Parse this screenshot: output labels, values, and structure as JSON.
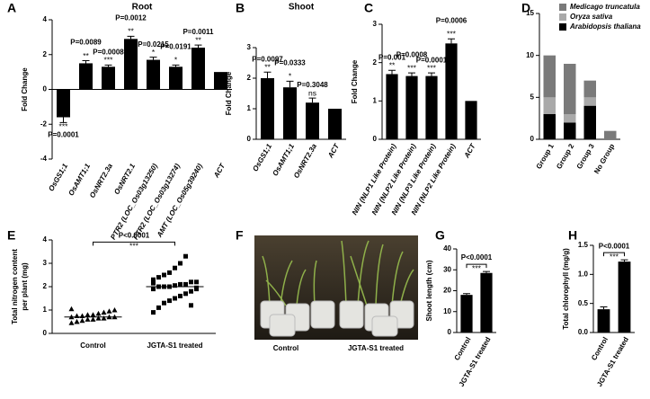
{
  "chart_data": [
    {
      "panel": "A",
      "type": "bar",
      "title": "Root",
      "ylabel": [
        "Fold Change"
      ],
      "categories": [
        "OsGS1;1",
        "OsAMT1;1",
        "OsNRT2.3a",
        "OsNRT2.1",
        "PTR2 (LOC_Os03g13250)",
        "PTR2 (LOC_Os03g13274)",
        "AMT (LOC_Os05g39240)",
        "ACT"
      ],
      "values": [
        -1.6,
        1.5,
        1.3,
        2.9,
        1.7,
        1.3,
        2.4,
        1.0
      ],
      "errors": [
        0.3,
        0.15,
        0.1,
        0.15,
        0.15,
        0.1,
        0.15,
        0
      ],
      "p_labels": [
        "P=0.0001",
        "P=0.0089",
        "P=0.0008",
        "P=0.0012",
        "P=0.0215",
        "P=0.0191",
        "P=0.0011",
        null
      ],
      "sig_labels": [
        "***",
        "**",
        "***",
        "**",
        "*",
        "*",
        "**",
        null
      ],
      "color": "#000000",
      "ylim": [
        -4,
        4
      ],
      "yticks": [
        -4,
        -2,
        0,
        2,
        4
      ]
    },
    {
      "panel": "B",
      "type": "bar",
      "title": "Shoot",
      "ylabel": [
        "Fold Change"
      ],
      "categories": [
        "OsGS1;1",
        "OsAMT1;1",
        "OsNRT2.3a",
        "ACT"
      ],
      "values": [
        2.0,
        1.7,
        1.2,
        1.0
      ],
      "errors": [
        0.2,
        0.2,
        0.15,
        0
      ],
      "p_labels": [
        "P=0.0097",
        "P=0.0333",
        "P=0.3048",
        null
      ],
      "sig_labels": [
        "**",
        "*",
        "ns",
        null
      ],
      "color": "#000000",
      "ylim": [
        0,
        3
      ],
      "yticks": [
        0,
        1,
        2,
        3
      ]
    },
    {
      "panel": "C",
      "type": "bar",
      "ylabel": [
        "Fold Change"
      ],
      "categories": [
        "NIN (NLP1 Like Protein)",
        "NIN (NLP2 Like Protein)",
        "NIN (NLP3 Like Protein)",
        "NIN (NLP2 Like Protein)",
        "ACT"
      ],
      "values": [
        1.7,
        1.65,
        1.65,
        2.5,
        1.0
      ],
      "errors": [
        0.1,
        0.08,
        0.08,
        0.12,
        0
      ],
      "p_labels": [
        "P=0.001",
        "P=0.0008",
        "P=0.0001",
        "P=0.0006",
        null
      ],
      "sig_labels": [
        "**",
        "***",
        "***",
        "***",
        null
      ],
      "color": "#000000",
      "ylim": [
        0,
        3
      ],
      "yticks": [
        0,
        1,
        2,
        3
      ]
    },
    {
      "panel": "D",
      "type": "stacked_bar",
      "categories": [
        "Group 1",
        "Group 2",
        "Group 3",
        "No Group"
      ],
      "series": [
        {
          "name": "Arabidopsis thaliana",
          "color": "#000000",
          "values": [
            3,
            2,
            4,
            0
          ]
        },
        {
          "name": "Oryza sativa",
          "color": "#a9a9a9",
          "values": [
            2,
            1,
            1,
            0
          ]
        },
        {
          "name": "Medicago truncatula",
          "color": "#7a7a7a",
          "values": [
            5,
            6,
            2,
            1
          ]
        }
      ],
      "ylim": [
        0,
        15
      ],
      "yticks": [
        0,
        5,
        10,
        15
      ],
      "legend": "top-right"
    },
    {
      "panel": "E",
      "type": "dot",
      "ylabel": [
        "Total nitrogen content",
        "per plant (mg)"
      ],
      "categories": [
        "Control",
        "JGTA-S1 treated"
      ],
      "points": [
        [
          0.45,
          0.5,
          0.55,
          0.6,
          0.6,
          0.65,
          0.65,
          0.7,
          0.7,
          0.7,
          0.75,
          0.75,
          0.8,
          0.8,
          0.85,
          0.9,
          0.95,
          1.0,
          1.05,
          0.5
        ],
        [
          0.9,
          1.1,
          1.3,
          1.4,
          1.5,
          1.6,
          1.7,
          1.8,
          1.9,
          1.9,
          2.0,
          2.0,
          2.0,
          2.05,
          2.1,
          2.1,
          2.2,
          2.2,
          2.3,
          2.4,
          2.5,
          2.6,
          2.8,
          3.0,
          3.3,
          1.2,
          1.95,
          2.15
        ]
      ],
      "means": [
        0.7,
        2.0
      ],
      "p_label": "P<0.0001",
      "sig_label": "***",
      "color": "#000000",
      "ylim": [
        0,
        4
      ],
      "yticks": [
        0,
        1,
        2,
        3,
        4
      ]
    },
    {
      "panel": "G",
      "type": "bar",
      "ylabel": [
        "Shoot length (cm)"
      ],
      "categories": [
        "Control",
        "JGTA-S1 treated"
      ],
      "values": [
        18,
        28.5
      ],
      "errors": [
        0.6,
        0.7
      ],
      "p_label": "P<0.0001",
      "sig_label": "***",
      "color": "#000000",
      "ylim": [
        0,
        40
      ],
      "yticks": [
        0,
        10,
        20,
        30,
        40
      ]
    },
    {
      "panel": "H",
      "type": "bar",
      "ylabel": [
        "Total chlorophyll (mg/g)"
      ],
      "categories": [
        "Control",
        "JGTA-S1 treated"
      ],
      "values": [
        0.4,
        1.22
      ],
      "errors": [
        0.04,
        0.03
      ],
      "p_label": "P<0.0001",
      "sig_label": "***",
      "color": "#000000",
      "ylim": [
        0,
        1.5
      ],
      "yticks": [
        {
          "value": 0,
          "label": "0.0"
        },
        0.5,
        {
          "value": 1,
          "label": "1.0"
        },
        1.5
      ]
    }
  ],
  "photo": {
    "panel": "F",
    "labels": [
      "Control",
      "JGTA-S1 treated"
    ]
  }
}
